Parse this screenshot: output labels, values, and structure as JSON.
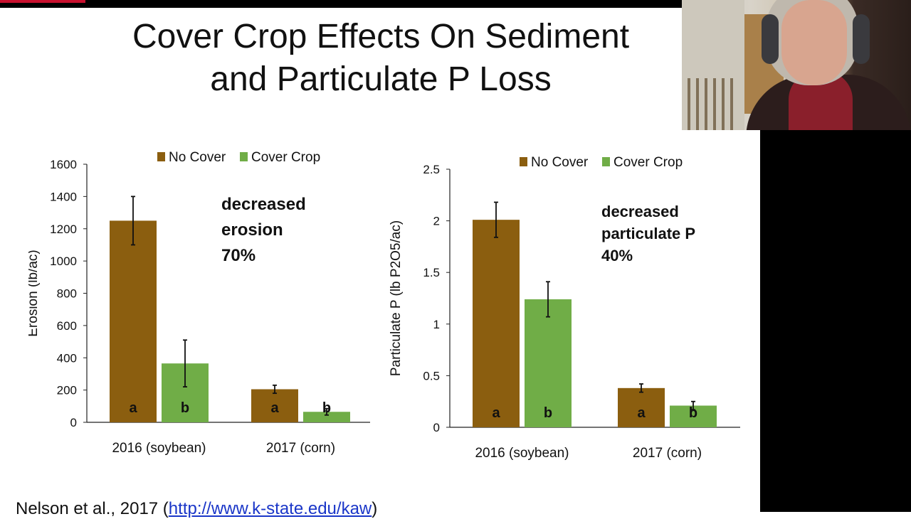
{
  "slide": {
    "title_line1": "Cover Crop Effects On Sediment",
    "title_line2": "and Particulate P Loss",
    "citation_prefix": "Nelson et al., 2017 (",
    "citation_link": "http://www.k-state.edu/kaw",
    "citation_suffix": ")"
  },
  "annotations": {
    "left": [
      "decreased",
      "erosion",
      "70%"
    ],
    "right": [
      "decreased",
      "particulate P",
      "40%"
    ]
  },
  "colors": {
    "no_cover": "#8b5e0f",
    "cover_crop": "#70ad47",
    "text": "#111111",
    "link": "#1a36c8"
  },
  "webcam": {
    "description_icon": "presenter-video"
  },
  "chart_data": [
    {
      "type": "bar",
      "categories": [
        "2016 (soybean)",
        "2017 (corn)"
      ],
      "ylabel": "Erosion (lb/ac)",
      "xlabel": "",
      "ylim": [
        0,
        1600
      ],
      "yticks": [
        0,
        200,
        400,
        600,
        800,
        1000,
        1200,
        1400,
        1600
      ],
      "legend": "top",
      "grid": false,
      "series": [
        {
          "name": "No Cover",
          "color": "#8b5e0f",
          "values": [
            1250,
            205
          ],
          "errors": [
            150,
            25
          ],
          "letters": [
            "a",
            "a"
          ]
        },
        {
          "name": "Cover Crop",
          "color": "#70ad47",
          "values": [
            365,
            65
          ],
          "errors": [
            145,
            20
          ],
          "letters": [
            "b",
            "b"
          ]
        }
      ]
    },
    {
      "type": "bar",
      "categories": [
        "2016 (soybean)",
        "2017 (corn)"
      ],
      "ylabel": "Particulate P (lb P2O5/ac)",
      "xlabel": "",
      "ylim": [
        0,
        2.5
      ],
      "yticks": [
        0,
        0.5,
        1,
        1.5,
        2,
        2.5
      ],
      "legend": "top",
      "grid": false,
      "series": [
        {
          "name": "No Cover",
          "color": "#8b5e0f",
          "values": [
            2.01,
            0.38
          ],
          "errors": [
            0.17,
            0.04
          ],
          "letters": [
            "a",
            "a"
          ]
        },
        {
          "name": "Cover Crop",
          "color": "#70ad47",
          "values": [
            1.24,
            0.21
          ],
          "errors": [
            0.17,
            0.04
          ],
          "letters": [
            "b",
            "b"
          ]
        }
      ]
    }
  ]
}
